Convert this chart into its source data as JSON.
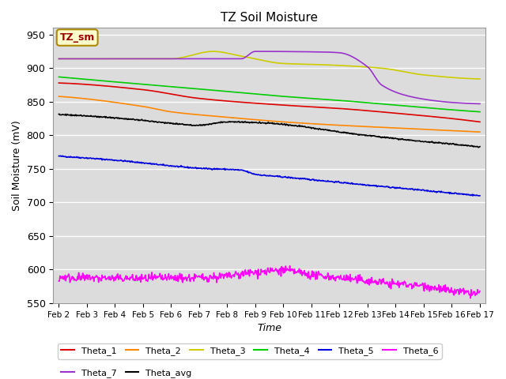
{
  "title": "TZ Soil Moisture",
  "ylabel": "Soil Moisture (mV)",
  "xlabel": "Time",
  "ylim": [
    550,
    960
  ],
  "bg_color": "#dcdcdc",
  "label_box": "TZ_sm",
  "n_days": 15,
  "pts_per_day": 48,
  "series_colors": {
    "Theta_1": "#dd0000",
    "Theta_2": "#ff8800",
    "Theta_3": "#cccc00",
    "Theta_4": "#00cc00",
    "Theta_5": "#0000dd",
    "Theta_6": "#ff00ff",
    "Theta_7": "#9933cc",
    "Theta_avg": "#000000"
  },
  "series_keypoints": {
    "Theta_1": [
      [
        0,
        878
      ],
      [
        3,
        868
      ],
      [
        5,
        855
      ],
      [
        8,
        845
      ],
      [
        10,
        840
      ],
      [
        12,
        833
      ],
      [
        14,
        825
      ],
      [
        15,
        820
      ]
    ],
    "Theta_2": [
      [
        0,
        858
      ],
      [
        3,
        843
      ],
      [
        4,
        835
      ],
      [
        6,
        827
      ],
      [
        8,
        820
      ],
      [
        10,
        815
      ],
      [
        12,
        811
      ],
      [
        14,
        807
      ],
      [
        15,
        805
      ]
    ],
    "Theta_3": [
      [
        0,
        914
      ],
      [
        4,
        914
      ],
      [
        5.5,
        925
      ],
      [
        6.5,
        918
      ],
      [
        8,
        907
      ],
      [
        9.5,
        905
      ],
      [
        11.5,
        900
      ],
      [
        13,
        890
      ],
      [
        15,
        884
      ]
    ],
    "Theta_4": [
      [
        0,
        887
      ],
      [
        3,
        876
      ],
      [
        5,
        869
      ],
      [
        8,
        858
      ],
      [
        10,
        852
      ],
      [
        12,
        845
      ],
      [
        14,
        838
      ],
      [
        15,
        835
      ]
    ],
    "Theta_5": [
      [
        0,
        769
      ],
      [
        2,
        763
      ],
      [
        5,
        751
      ],
      [
        6.5,
        748
      ],
      [
        7,
        742
      ],
      [
        8,
        738
      ],
      [
        10,
        730
      ],
      [
        12,
        722
      ],
      [
        14,
        714
      ],
      [
        15,
        710
      ]
    ],
    "Theta_6": [
      [
        0,
        588
      ],
      [
        4,
        587
      ],
      [
        6,
        590
      ],
      [
        7,
        596
      ],
      [
        8,
        599
      ],
      [
        9,
        592
      ],
      [
        10,
        588
      ],
      [
        11,
        583
      ],
      [
        12,
        579
      ],
      [
        13,
        576
      ],
      [
        14,
        568
      ],
      [
        15,
        564
      ]
    ],
    "Theta_7": [
      [
        0,
        914
      ],
      [
        4,
        914
      ],
      [
        5,
        914
      ],
      [
        6.5,
        914
      ],
      [
        7,
        925
      ],
      [
        9.5,
        924
      ],
      [
        10,
        923
      ],
      [
        11,
        902
      ],
      [
        11.5,
        875
      ],
      [
        12.5,
        858
      ],
      [
        13.5,
        851
      ],
      [
        14,
        849
      ],
      [
        15,
        847
      ]
    ],
    "Theta_avg": [
      [
        0,
        831
      ],
      [
        2,
        826
      ],
      [
        4,
        818
      ],
      [
        5,
        815
      ],
      [
        6,
        820
      ],
      [
        7.5,
        818
      ],
      [
        8.5,
        814
      ],
      [
        10,
        805
      ],
      [
        12,
        795
      ],
      [
        14,
        787
      ],
      [
        15,
        783
      ]
    ]
  },
  "x_tick_positions": [
    0,
    1,
    2,
    3,
    4,
    5,
    6,
    7,
    8,
    9,
    10,
    11,
    12,
    13,
    14,
    15
  ],
  "x_tick_labels": [
    "Feb 2",
    "Feb 3",
    "Feb 4",
    "Feb 5",
    "Feb 6",
    "Feb 7",
    "Feb 8",
    "Feb 9",
    "Feb 10",
    "Feb 11",
    "Feb 12",
    "Feb 13",
    "Feb 14",
    "Feb 15",
    "Feb 16",
    "Feb 17"
  ],
  "yticks": [
    550,
    600,
    650,
    700,
    750,
    800,
    850,
    900,
    950
  ],
  "legend_row1": [
    "Theta_1",
    "Theta_2",
    "Theta_3",
    "Theta_4",
    "Theta_5",
    "Theta_6"
  ],
  "legend_row2": [
    "Theta_7",
    "Theta_avg"
  ]
}
